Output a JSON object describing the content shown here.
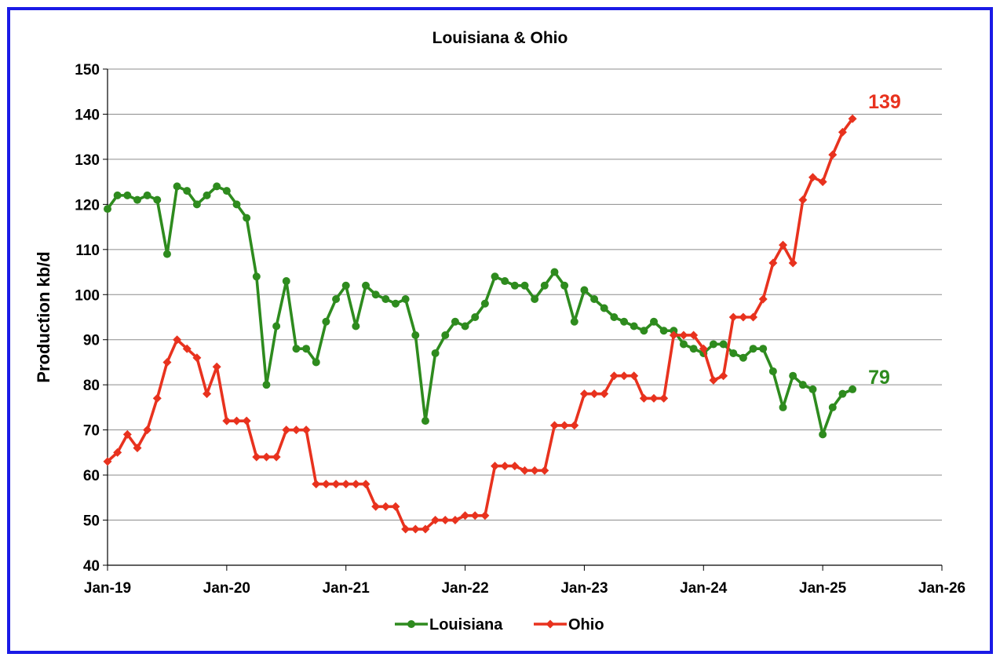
{
  "chart_data": {
    "type": "line",
    "title": "Louisiana & Ohio",
    "ylabel": "Production kb/d",
    "xlabel": "",
    "ylim": [
      40,
      150
    ],
    "yticks": [
      40,
      50,
      60,
      70,
      80,
      90,
      100,
      110,
      120,
      130,
      140,
      150
    ],
    "x_start": "Jan-19",
    "x_range_months": [
      0,
      84
    ],
    "xticks": [
      {
        "label": "Jan-19",
        "month": 0
      },
      {
        "label": "Jan-20",
        "month": 12
      },
      {
        "label": "Jan-21",
        "month": 24
      },
      {
        "label": "Jan-22",
        "month": 36
      },
      {
        "label": "Jan-23",
        "month": 48
      },
      {
        "label": "Jan-24",
        "month": 60
      },
      {
        "label": "Jan-25",
        "month": 72
      },
      {
        "label": "Jan-26",
        "month": 84
      }
    ],
    "grid": "horizontal",
    "legend": "bottom-center",
    "series": [
      {
        "name": "Louisiana",
        "color": "#2e8b1e",
        "marker": "circle",
        "end_label": "79",
        "values": [
          119,
          122,
          122,
          121,
          122,
          121,
          109,
          124,
          123,
          120,
          122,
          124,
          123,
          120,
          117,
          104,
          80,
          93,
          103,
          88,
          88,
          85,
          94,
          99,
          102,
          93,
          102,
          100,
          99,
          98,
          99,
          91,
          72,
          87,
          91,
          94,
          93,
          95,
          98,
          104,
          103,
          102,
          102,
          99,
          102,
          105,
          102,
          94,
          101,
          99,
          97,
          95,
          94,
          93,
          92,
          94,
          92,
          92,
          89,
          88,
          87,
          89,
          89,
          87,
          86,
          88,
          88,
          83,
          75,
          82,
          80,
          79,
          69,
          75,
          78,
          79
        ]
      },
      {
        "name": "Ohio",
        "color": "#e8321e",
        "marker": "diamond",
        "end_label": "139",
        "values": [
          63,
          65,
          69,
          66,
          70,
          77,
          85,
          90,
          88,
          86,
          78,
          84,
          72,
          72,
          72,
          64,
          64,
          64,
          70,
          70,
          70,
          58,
          58,
          58,
          58,
          58,
          58,
          53,
          53,
          53,
          48,
          48,
          48,
          50,
          50,
          50,
          51,
          51,
          51,
          62,
          62,
          62,
          61,
          61,
          61,
          71,
          71,
          71,
          78,
          78,
          78,
          82,
          82,
          82,
          77,
          77,
          77,
          91,
          91,
          91,
          88,
          81,
          82,
          95,
          95,
          95,
          99,
          107,
          111,
          107,
          121,
          126,
          125,
          131,
          136,
          139
        ]
      }
    ]
  }
}
